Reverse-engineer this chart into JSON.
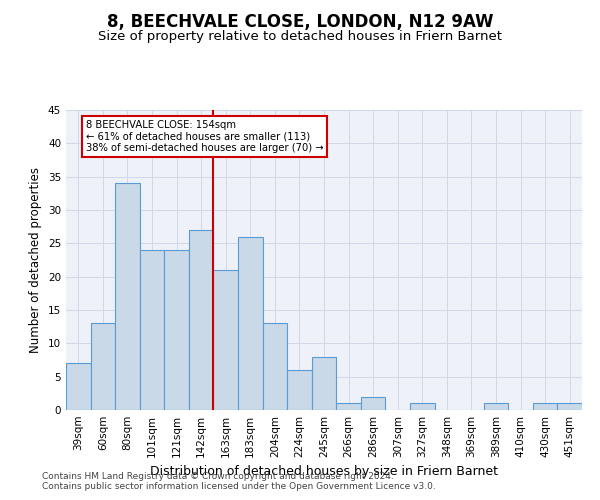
{
  "title": "8, BEECHVALE CLOSE, LONDON, N12 9AW",
  "subtitle": "Size of property relative to detached houses in Friern Barnet",
  "xlabel": "Distribution of detached houses by size in Friern Barnet",
  "ylabel": "Number of detached properties",
  "categories": [
    "39sqm",
    "60sqm",
    "80sqm",
    "101sqm",
    "121sqm",
    "142sqm",
    "163sqm",
    "183sqm",
    "204sqm",
    "224sqm",
    "245sqm",
    "266sqm",
    "286sqm",
    "307sqm",
    "327sqm",
    "348sqm",
    "369sqm",
    "389sqm",
    "410sqm",
    "430sqm",
    "451sqm"
  ],
  "values": [
    7,
    13,
    34,
    24,
    24,
    27,
    21,
    26,
    13,
    6,
    8,
    1,
    2,
    0,
    1,
    0,
    0,
    1,
    0,
    1,
    1
  ],
  "bar_color": "#c9d9e8",
  "bar_edge_color": "#5b9bd5",
  "vline_index": 6,
  "vline_color": "#cc0000",
  "annotation_text": "8 BEECHVALE CLOSE: 154sqm\n← 61% of detached houses are smaller (113)\n38% of semi-detached houses are larger (70) →",
  "annotation_box_color": "#ffffff",
  "annotation_box_edge": "#cc0000",
  "ylim": [
    0,
    45
  ],
  "yticks": [
    0,
    5,
    10,
    15,
    20,
    25,
    30,
    35,
    40,
    45
  ],
  "grid_color": "#d0d8e8",
  "bg_color": "#eef2f8",
  "footnote1": "Contains HM Land Registry data © Crown copyright and database right 2024.",
  "footnote2": "Contains public sector information licensed under the Open Government Licence v3.0.",
  "title_fontsize": 12,
  "subtitle_fontsize": 9.5,
  "xlabel_fontsize": 9,
  "ylabel_fontsize": 8.5,
  "tick_fontsize": 7.5,
  "footnote_fontsize": 6.5
}
